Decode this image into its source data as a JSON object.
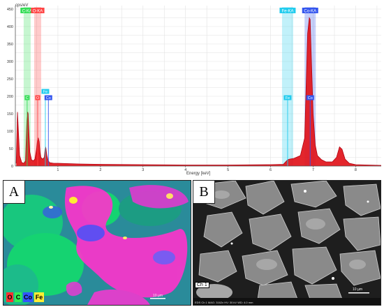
{
  "chart_data": {
    "type": "line",
    "ylabel": "cps/eV",
    "xlabel": "Energy [keV]",
    "xlim": [
      0.0,
      8.6
    ],
    "ylim": [
      0,
      460
    ],
    "x_ticks": [
      "1",
      "2",
      "3",
      "4",
      "5",
      "6",
      "7",
      "8"
    ],
    "y_ticks": [
      "0",
      "50",
      "100",
      "150",
      "200",
      "250",
      "300",
      "350",
      "400",
      "450"
    ],
    "grid": true,
    "series": [
      {
        "x": [
          0.02,
          0.05,
          0.1,
          0.15,
          0.2,
          0.24,
          0.27,
          0.28,
          0.29,
          0.3,
          0.31,
          0.34,
          0.38,
          0.42,
          0.46,
          0.5,
          0.52,
          0.54,
          0.56,
          0.58,
          0.6,
          0.64,
          0.68,
          0.7,
          0.71,
          0.72,
          0.74,
          0.76,
          0.8,
          0.9,
          1.0,
          1.5,
          2.0,
          3.0,
          4.0,
          5.0,
          6.0,
          6.3,
          6.4,
          6.45,
          6.55,
          6.7,
          6.8,
          6.87,
          6.91,
          6.93,
          6.95,
          7.0,
          7.05,
          7.1,
          7.2,
          7.3,
          7.45,
          7.55,
          7.62,
          7.68,
          7.75,
          7.85,
          8.0,
          8.3,
          8.6
        ],
        "y": [
          8,
          155,
          30,
          10,
          8,
          15,
          130,
          148,
          155,
          150,
          120,
          40,
          18,
          15,
          20,
          50,
          75,
          80,
          70,
          40,
          25,
          20,
          25,
          50,
          55,
          50,
          30,
          20,
          10,
          8,
          8,
          6,
          5,
          4,
          3,
          3,
          4,
          5,
          18,
          20,
          22,
          30,
          80,
          380,
          425,
          420,
          340,
          150,
          60,
          30,
          18,
          12,
          12,
          25,
          55,
          48,
          20,
          8,
          4,
          3,
          2
        ]
      }
    ],
    "annotations": [
      {
        "label": "C-KA",
        "x": 0.277,
        "color": "#33dd55"
      },
      {
        "label": "O-KA",
        "x": 0.525,
        "color": "#ff4444"
      },
      {
        "label": "Fe-KA",
        "x": 6.4,
        "color": "#22ccee"
      },
      {
        "label": "Co-KA",
        "x": 6.93,
        "color": "#3355ee"
      }
    ],
    "peak_markers": [
      {
        "label": "C",
        "x": 0.277,
        "color": "#33dd55"
      },
      {
        "label": "O",
        "x": 0.525,
        "color": "#ff4444"
      },
      {
        "label": "Fe",
        "x": 0.705,
        "color": "#22ccee"
      },
      {
        "label": "Co",
        "x": 0.776,
        "color": "#3355ee"
      },
      {
        "label": "Fe",
        "x": 6.4,
        "color": "#22ccee"
      },
      {
        "label": "Co",
        "x": 6.93,
        "color": "#3355ee"
      }
    ]
  },
  "panel_a": {
    "label": "A",
    "legend": [
      {
        "label": "O",
        "color": "#ff3333"
      },
      {
        "label": "C",
        "color": "#33ee55"
      },
      {
        "label": "Co",
        "color": "#3355ff"
      },
      {
        "label": "Fe",
        "color": "#ffee33"
      }
    ],
    "scale": "10 µm",
    "colors": {
      "background": "#2a8b9a",
      "magenta": "#ff33cc",
      "green": "#11ee77"
    }
  },
  "panel_b": {
    "label": "B",
    "channel": "Ch 1",
    "meta": "EDS  Ch 1  MAG: 3162x  HV: 30 kV  WD: 4.0 mm",
    "scale": "10 µm"
  }
}
